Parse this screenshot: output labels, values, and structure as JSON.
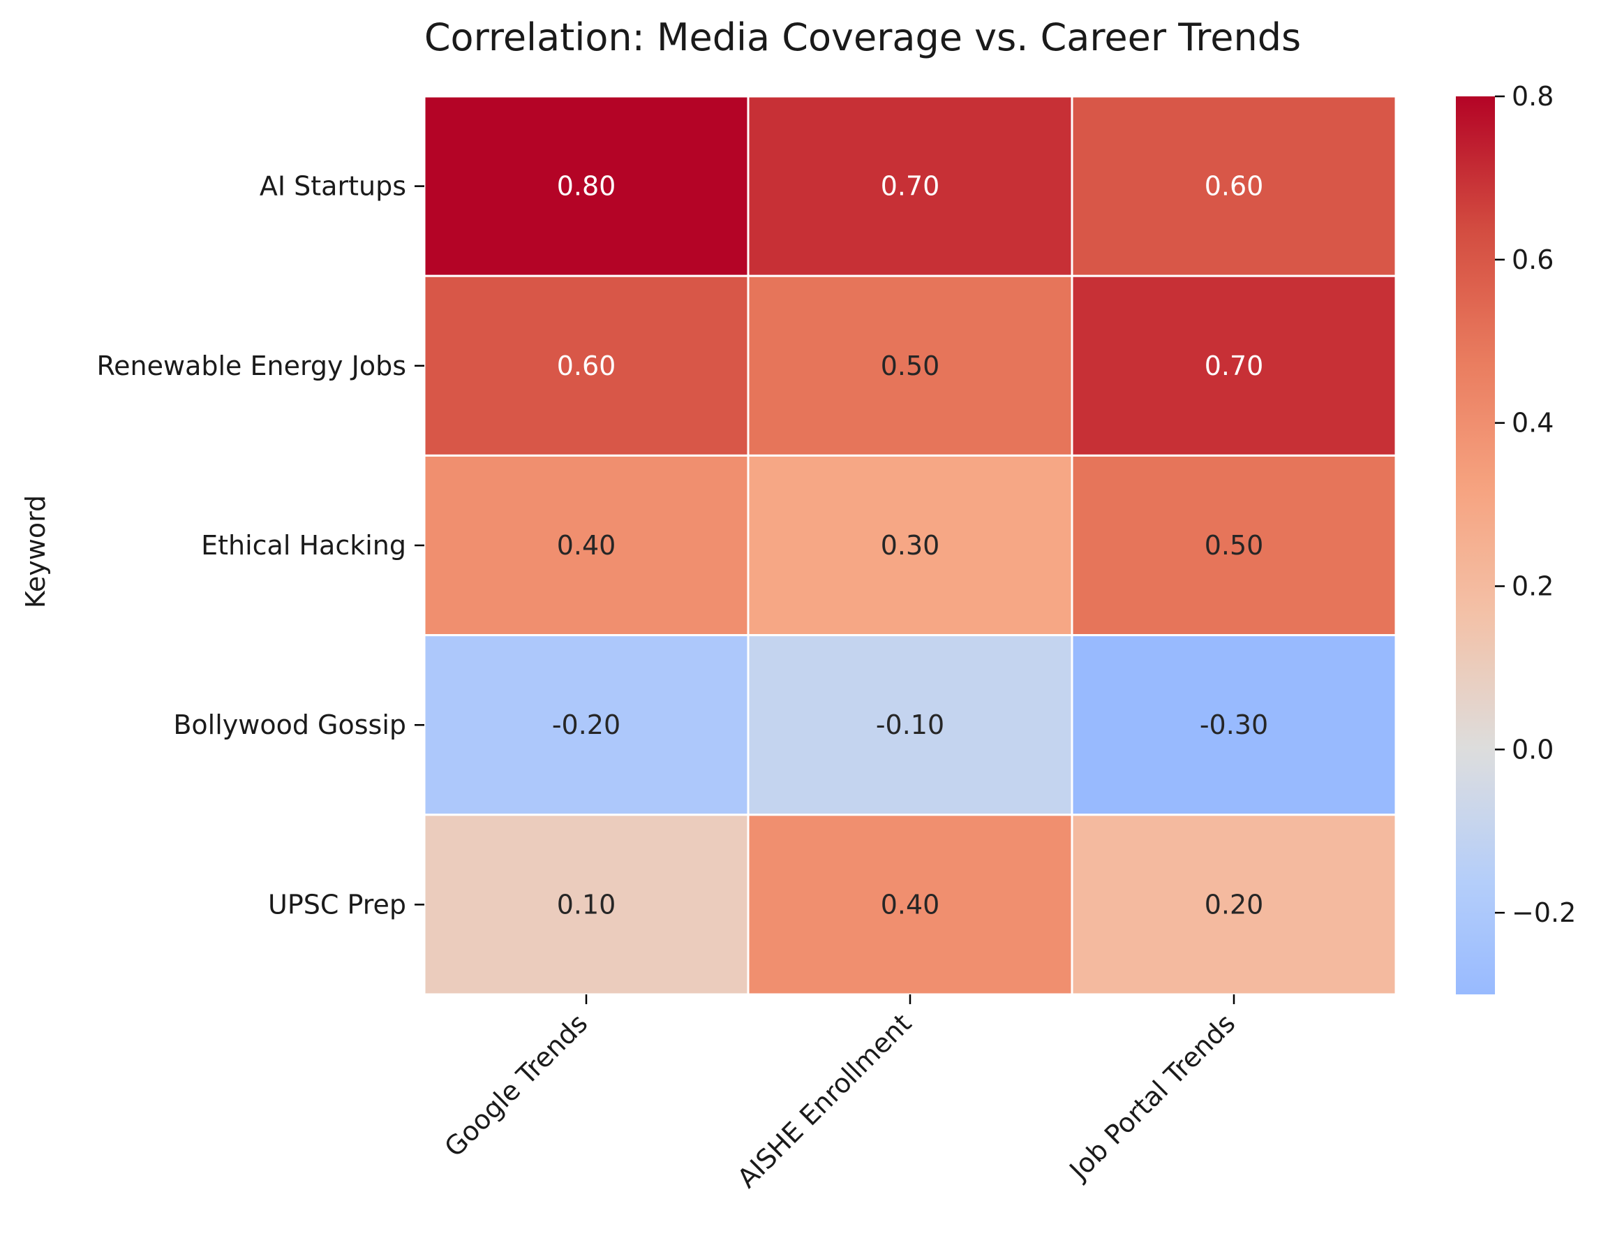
{
  "chart_data": {
    "type": "heatmap",
    "title": "Correlation: Media Coverage vs. Career Trends",
    "xlabel": "",
    "ylabel": "Keyword",
    "columns": [
      "Google Trends",
      "AISHE Enrollment",
      "Job Portal Trends"
    ],
    "rows": [
      "AI Startups",
      "Renewable Energy Jobs",
      "Ethical Hacking",
      "Bollywood Gossip",
      "UPSC Prep"
    ],
    "values": [
      [
        0.8,
        0.7,
        0.6
      ],
      [
        0.6,
        0.5,
        0.7
      ],
      [
        0.4,
        0.3,
        0.5
      ],
      [
        -0.2,
        -0.1,
        -0.3
      ],
      [
        0.1,
        0.4,
        0.2
      ]
    ],
    "cell_labels": [
      [
        "0.80",
        "0.70",
        "0.60"
      ],
      [
        "0.60",
        "0.50",
        "0.70"
      ],
      [
        "0.40",
        "0.30",
        "0.50"
      ],
      [
        "-0.20",
        "-0.10",
        "-0.30"
      ],
      [
        "0.10",
        "0.40",
        "0.20"
      ]
    ],
    "colormap": "coolwarm",
    "color_range": [
      -0.3,
      0.8
    ],
    "center": 0,
    "colorbar_ticks": [
      -0.2,
      0.0,
      0.2,
      0.4,
      0.6,
      0.8
    ],
    "colorbar_tick_labels": [
      "−0.2",
      "0.0",
      "0.2",
      "0.4",
      "0.6",
      "0.8"
    ],
    "grid": true,
    "legend": "colorbar-right"
  }
}
